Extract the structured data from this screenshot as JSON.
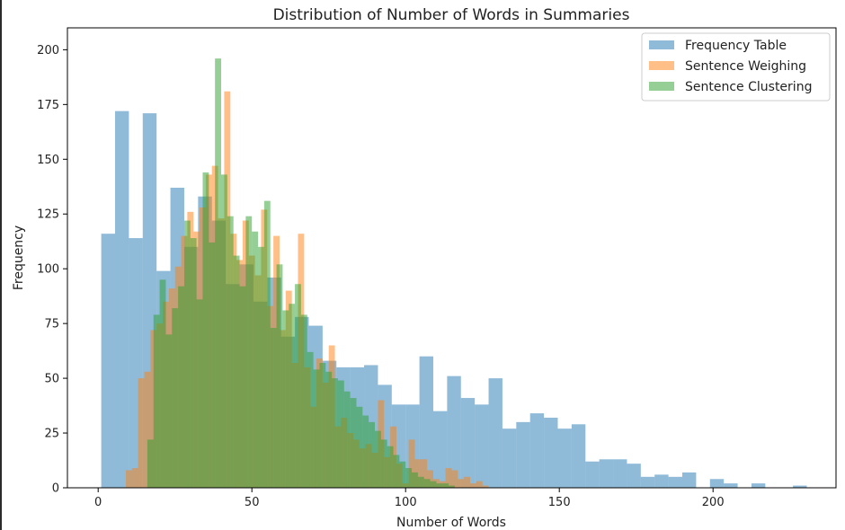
{
  "chart_data": {
    "type": "bar",
    "subtype": "overlapping-histogram",
    "title": "Distribution of Number of Words in Summaries",
    "xlabel": "Number of Words",
    "ylabel": "Frequency",
    "xlim": [
      -10,
      240
    ],
    "ylim": [
      0,
      210
    ],
    "xticks": [
      0,
      50,
      100,
      150,
      200
    ],
    "yticks": [
      0,
      25,
      50,
      75,
      100,
      125,
      150,
      175,
      200
    ],
    "grid": false,
    "legend_position": "top-right",
    "alpha": 0.5,
    "series": [
      {
        "name": "Frequency Table",
        "color": "#1f77b4",
        "bins": [
          [
            1,
            5.5,
            116
          ],
          [
            5.5,
            10,
            172
          ],
          [
            10,
            14.5,
            114
          ],
          [
            14.5,
            19,
            171
          ],
          [
            19,
            23.5,
            99
          ],
          [
            23.5,
            28,
            137
          ],
          [
            28,
            32.5,
            110
          ],
          [
            32.5,
            37,
            133
          ],
          [
            37,
            41.5,
            122
          ],
          [
            41.5,
            46,
            93
          ],
          [
            46,
            50.5,
            102
          ],
          [
            50.5,
            55,
            85
          ],
          [
            55,
            59.5,
            96
          ],
          [
            59.5,
            64,
            69
          ],
          [
            64,
            68.5,
            78
          ],
          [
            68.5,
            73,
            74
          ],
          [
            73,
            77.5,
            58
          ],
          [
            77.5,
            82,
            55
          ],
          [
            82,
            86.5,
            55
          ],
          [
            86.5,
            91,
            56
          ],
          [
            91,
            95.5,
            47
          ],
          [
            95.5,
            100,
            38
          ],
          [
            100,
            104.5,
            38
          ],
          [
            104.5,
            109,
            60
          ],
          [
            109,
            113.5,
            35
          ],
          [
            113.5,
            118,
            51
          ],
          [
            118,
            122.5,
            41
          ],
          [
            122.5,
            127,
            38
          ],
          [
            127,
            131.5,
            50
          ],
          [
            131.5,
            136,
            27
          ],
          [
            136,
            140.5,
            30
          ],
          [
            140.5,
            145,
            34
          ],
          [
            145,
            149.5,
            32
          ],
          [
            149.5,
            154,
            27
          ],
          [
            154,
            158.5,
            29
          ],
          [
            158.5,
            163,
            12
          ],
          [
            163,
            167.5,
            13
          ],
          [
            167.5,
            172,
            13
          ],
          [
            172,
            176.5,
            11
          ],
          [
            176.5,
            181,
            5
          ],
          [
            181,
            185.5,
            6
          ],
          [
            185.5,
            190,
            5
          ],
          [
            190,
            194.5,
            7
          ],
          [
            194.5,
            199,
            0
          ],
          [
            199,
            203.5,
            4
          ],
          [
            203.5,
            208,
            2
          ],
          [
            208,
            212.5,
            0
          ],
          [
            212.5,
            217,
            2
          ],
          [
            217,
            221.5,
            0
          ],
          [
            221.5,
            226,
            0
          ],
          [
            226,
            230.5,
            1
          ]
        ]
      },
      {
        "name": "Sentence Weighing",
        "color": "#ff7f0e",
        "bins": [
          [
            9,
            11,
            8
          ],
          [
            11,
            13,
            9
          ],
          [
            13,
            15,
            50
          ],
          [
            15,
            17,
            53
          ],
          [
            17,
            19,
            72
          ],
          [
            19,
            21,
            75
          ],
          [
            21,
            23,
            85
          ],
          [
            23,
            25,
            91
          ],
          [
            25,
            27,
            101
          ],
          [
            27,
            29,
            115
          ],
          [
            29,
            31,
            126
          ],
          [
            31,
            33,
            117
          ],
          [
            33,
            35,
            128
          ],
          [
            35,
            37,
            143
          ],
          [
            37,
            39,
            147
          ],
          [
            39,
            41,
            123
          ],
          [
            41,
            43,
            181
          ],
          [
            43,
            45,
            116
          ],
          [
            45,
            47,
            104
          ],
          [
            47,
            49,
            122
          ],
          [
            49,
            51,
            106
          ],
          [
            51,
            53,
            97
          ],
          [
            53,
            55,
            127
          ],
          [
            55,
            57,
            83
          ],
          [
            57,
            59,
            115
          ],
          [
            59,
            61,
            72
          ],
          [
            61,
            63,
            90
          ],
          [
            63,
            65,
            57
          ],
          [
            65,
            67,
            116
          ],
          [
            67,
            69,
            55
          ],
          [
            69,
            71,
            37
          ],
          [
            71,
            73,
            59
          ],
          [
            73,
            75,
            48
          ],
          [
            75,
            77,
            65
          ],
          [
            77,
            79,
            28
          ],
          [
            79,
            81,
            32
          ],
          [
            81,
            83,
            25
          ],
          [
            83,
            85,
            22
          ],
          [
            85,
            87,
            18
          ],
          [
            87,
            89,
            20
          ],
          [
            89,
            91,
            16
          ],
          [
            91,
            93,
            40
          ],
          [
            93,
            95,
            14
          ],
          [
            95,
            97,
            28
          ],
          [
            97,
            99,
            11
          ],
          [
            99,
            101,
            2
          ],
          [
            101,
            103,
            22
          ],
          [
            103,
            105,
            13
          ],
          [
            105,
            107,
            13
          ],
          [
            107,
            109,
            8
          ],
          [
            109,
            111,
            4
          ],
          [
            111,
            113,
            3
          ],
          [
            113,
            115,
            9
          ],
          [
            115,
            117,
            8
          ],
          [
            117,
            119,
            4
          ],
          [
            119,
            121,
            5
          ],
          [
            121,
            123,
            2
          ],
          [
            123,
            125,
            3
          ],
          [
            125,
            127,
            1
          ]
        ]
      },
      {
        "name": "Sentence Clustering",
        "color": "#2ca02c",
        "bins": [
          [
            16,
            18,
            22
          ],
          [
            18,
            20,
            79
          ],
          [
            20,
            22,
            95
          ],
          [
            22,
            24,
            70
          ],
          [
            24,
            26,
            82
          ],
          [
            26,
            28,
            92
          ],
          [
            28,
            30,
            122
          ],
          [
            30,
            32,
            114
          ],
          [
            32,
            34,
            86
          ],
          [
            34,
            36,
            144
          ],
          [
            36,
            38,
            112
          ],
          [
            38,
            40,
            196
          ],
          [
            40,
            42,
            143
          ],
          [
            42,
            44,
            124
          ],
          [
            44,
            46,
            106
          ],
          [
            46,
            48,
            92
          ],
          [
            48,
            50,
            124
          ],
          [
            50,
            52,
            117
          ],
          [
            52,
            54,
            110
          ],
          [
            54,
            56,
            131
          ],
          [
            56,
            58,
            73
          ],
          [
            58,
            60,
            102
          ],
          [
            60,
            62,
            81
          ],
          [
            62,
            64,
            84
          ],
          [
            64,
            66,
            93
          ],
          [
            66,
            68,
            79
          ],
          [
            68,
            70,
            62
          ],
          [
            70,
            72,
            54
          ],
          [
            72,
            74,
            57
          ],
          [
            74,
            76,
            53
          ],
          [
            76,
            78,
            50
          ],
          [
            78,
            80,
            49
          ],
          [
            80,
            82,
            44
          ],
          [
            82,
            84,
            41
          ],
          [
            84,
            86,
            37
          ],
          [
            86,
            88,
            33
          ],
          [
            88,
            90,
            30
          ],
          [
            90,
            92,
            26
          ],
          [
            92,
            94,
            22
          ],
          [
            94,
            96,
            19
          ],
          [
            96,
            98,
            15
          ],
          [
            98,
            100,
            12
          ],
          [
            100,
            102,
            9
          ],
          [
            102,
            104,
            7
          ],
          [
            104,
            106,
            5
          ],
          [
            106,
            108,
            4
          ],
          [
            108,
            110,
            3
          ],
          [
            110,
            112,
            2
          ],
          [
            112,
            114,
            2
          ],
          [
            114,
            116,
            1
          ]
        ]
      }
    ]
  }
}
